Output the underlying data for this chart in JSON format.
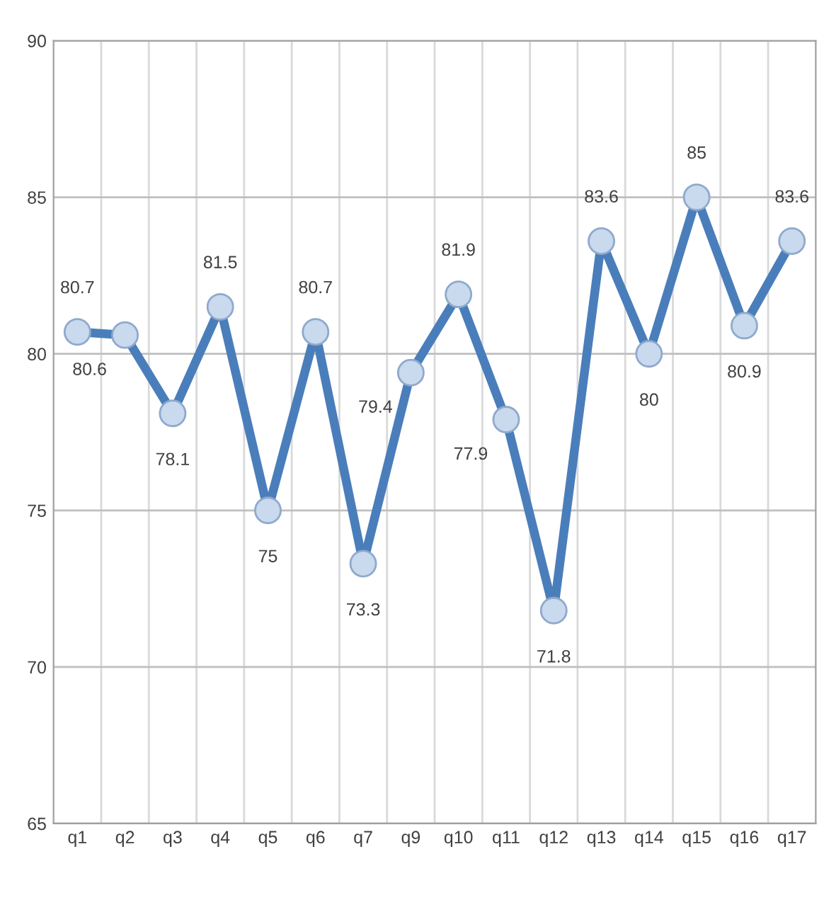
{
  "chart_data": {
    "type": "line",
    "categories": [
      "q1",
      "q2",
      "q3",
      "q4",
      "q5",
      "q6",
      "q7",
      "q9",
      "q10",
      "q11",
      "q12",
      "q13",
      "q14",
      "q15",
      "q16",
      "q17"
    ],
    "series": [
      {
        "color": "#4a7ebb",
        "values": [
          80.7,
          80.6,
          78.1,
          81.5,
          75,
          80.7,
          73.3,
          79.4,
          81.9,
          77.9,
          71.8,
          83.6,
          80,
          85,
          80.9,
          83.6
        ]
      }
    ],
    "ylim": [
      65,
      90
    ],
    "yticks": [
      65,
      70,
      75,
      80,
      85,
      90
    ],
    "grid": true,
    "data_labels": true,
    "marker": "circle",
    "line_style": "solid"
  }
}
